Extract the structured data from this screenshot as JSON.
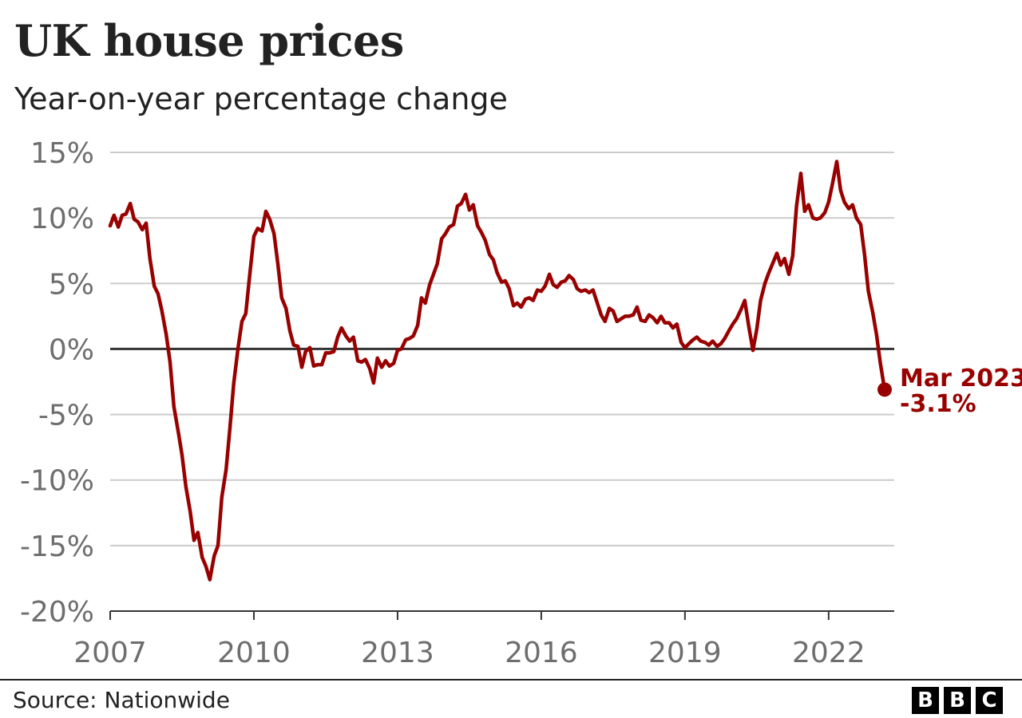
{
  "chart_data": {
    "type": "line",
    "title": "UK house prices",
    "subtitle": "Year-on-year percentage change",
    "xlabel": "",
    "ylabel": "",
    "x_range": [
      2007.0,
      2023.17
    ],
    "ylim": [
      -20,
      15
    ],
    "y_ticks": [
      15,
      10,
      5,
      0,
      -5,
      -10,
      -15,
      -20
    ],
    "y_tick_labels": [
      "15%",
      "10%",
      "5%",
      "0%",
      "-5%",
      "-10%",
      "-15%",
      "-20%"
    ],
    "x_ticks": [
      2007,
      2010,
      2013,
      2016,
      2019,
      2022
    ],
    "x_tick_labels": [
      "2007",
      "2010",
      "2013",
      "2016",
      "2019",
      "2022"
    ],
    "grid": true,
    "line_color": "#990000",
    "series": [
      {
        "name": "",
        "points": [
          [
            2007.0,
            9.4
          ],
          [
            2007.08,
            10.2
          ],
          [
            2007.17,
            9.3
          ],
          [
            2007.25,
            10.2
          ],
          [
            2007.33,
            10.3
          ],
          [
            2007.42,
            11.1
          ],
          [
            2007.5,
            9.9
          ],
          [
            2007.58,
            9.7
          ],
          [
            2007.67,
            9.1
          ],
          [
            2007.75,
            9.6
          ],
          [
            2007.83,
            6.9
          ],
          [
            2007.92,
            4.8
          ],
          [
            2008.0,
            4.2
          ],
          [
            2008.08,
            2.9
          ],
          [
            2008.17,
            1.1
          ],
          [
            2008.25,
            -1.0
          ],
          [
            2008.33,
            -4.4
          ],
          [
            2008.42,
            -6.3
          ],
          [
            2008.5,
            -8.1
          ],
          [
            2008.58,
            -10.5
          ],
          [
            2008.67,
            -12.4
          ],
          [
            2008.75,
            -14.6
          ],
          [
            2008.83,
            -14.0
          ],
          [
            2008.92,
            -15.9
          ],
          [
            2009.0,
            -16.6
          ],
          [
            2009.08,
            -17.6
          ],
          [
            2009.17,
            -15.8
          ],
          [
            2009.25,
            -15.0
          ],
          [
            2009.33,
            -11.3
          ],
          [
            2009.42,
            -9.2
          ],
          [
            2009.5,
            -6.0
          ],
          [
            2009.58,
            -2.6
          ],
          [
            2009.67,
            0.1
          ],
          [
            2009.75,
            2.1
          ],
          [
            2009.83,
            2.7
          ],
          [
            2009.92,
            5.9
          ],
          [
            2010.0,
            8.6
          ],
          [
            2010.08,
            9.2
          ],
          [
            2010.17,
            9.0
          ],
          [
            2010.25,
            10.5
          ],
          [
            2010.33,
            9.9
          ],
          [
            2010.42,
            8.8
          ],
          [
            2010.5,
            6.5
          ],
          [
            2010.58,
            3.9
          ],
          [
            2010.67,
            3.1
          ],
          [
            2010.75,
            1.4
          ],
          [
            2010.83,
            0.3
          ],
          [
            2010.92,
            0.2
          ],
          [
            2011.0,
            -1.4
          ],
          [
            2011.08,
            -0.2
          ],
          [
            2011.17,
            0.1
          ],
          [
            2011.25,
            -1.3
          ],
          [
            2011.33,
            -1.2
          ],
          [
            2011.42,
            -1.2
          ],
          [
            2011.5,
            -0.3
          ],
          [
            2011.58,
            -0.3
          ],
          [
            2011.67,
            -0.2
          ],
          [
            2011.75,
            0.9
          ],
          [
            2011.83,
            1.6
          ],
          [
            2011.92,
            1.0
          ],
          [
            2012.0,
            0.6
          ],
          [
            2012.08,
            0.9
          ],
          [
            2012.17,
            -0.9
          ],
          [
            2012.25,
            -1.0
          ],
          [
            2012.33,
            -0.8
          ],
          [
            2012.42,
            -1.5
          ],
          [
            2012.5,
            -2.6
          ],
          [
            2012.58,
            -0.7
          ],
          [
            2012.67,
            -1.4
          ],
          [
            2012.75,
            -0.9
          ],
          [
            2012.83,
            -1.3
          ],
          [
            2012.92,
            -1.1
          ],
          [
            2013.0,
            -0.1
          ],
          [
            2013.08,
            0.0
          ],
          [
            2013.17,
            0.7
          ],
          [
            2013.25,
            0.8
          ],
          [
            2013.33,
            1.0
          ],
          [
            2013.42,
            1.8
          ],
          [
            2013.5,
            3.9
          ],
          [
            2013.58,
            3.5
          ],
          [
            2013.67,
            4.9
          ],
          [
            2013.75,
            5.7
          ],
          [
            2013.83,
            6.5
          ],
          [
            2013.92,
            8.4
          ],
          [
            2014.0,
            8.8
          ],
          [
            2014.08,
            9.3
          ],
          [
            2014.17,
            9.5
          ],
          [
            2014.25,
            10.9
          ],
          [
            2014.33,
            11.1
          ],
          [
            2014.42,
            11.8
          ],
          [
            2014.5,
            10.6
          ],
          [
            2014.58,
            11.0
          ],
          [
            2014.67,
            9.4
          ],
          [
            2014.75,
            8.9
          ],
          [
            2014.83,
            8.3
          ],
          [
            2014.92,
            7.2
          ],
          [
            2015.0,
            6.8
          ],
          [
            2015.08,
            5.8
          ],
          [
            2015.17,
            5.1
          ],
          [
            2015.25,
            5.2
          ],
          [
            2015.33,
            4.6
          ],
          [
            2015.42,
            3.3
          ],
          [
            2015.5,
            3.5
          ],
          [
            2015.58,
            3.2
          ],
          [
            2015.67,
            3.8
          ],
          [
            2015.75,
            3.9
          ],
          [
            2015.83,
            3.7
          ],
          [
            2015.92,
            4.5
          ],
          [
            2016.0,
            4.4
          ],
          [
            2016.08,
            4.8
          ],
          [
            2016.17,
            5.7
          ],
          [
            2016.25,
            4.9
          ],
          [
            2016.33,
            4.7
          ],
          [
            2016.42,
            5.1
          ],
          [
            2016.5,
            5.2
          ],
          [
            2016.58,
            5.6
          ],
          [
            2016.67,
            5.3
          ],
          [
            2016.75,
            4.6
          ],
          [
            2016.83,
            4.4
          ],
          [
            2016.92,
            4.5
          ],
          [
            2017.0,
            4.3
          ],
          [
            2017.08,
            4.5
          ],
          [
            2017.17,
            3.5
          ],
          [
            2017.25,
            2.6
          ],
          [
            2017.33,
            2.1
          ],
          [
            2017.42,
            3.1
          ],
          [
            2017.5,
            2.9
          ],
          [
            2017.58,
            2.1
          ],
          [
            2017.67,
            2.3
          ],
          [
            2017.75,
            2.5
          ],
          [
            2017.83,
            2.5
          ],
          [
            2017.92,
            2.6
          ],
          [
            2018.0,
            3.2
          ],
          [
            2018.08,
            2.2
          ],
          [
            2018.17,
            2.1
          ],
          [
            2018.25,
            2.6
          ],
          [
            2018.33,
            2.4
          ],
          [
            2018.42,
            2.0
          ],
          [
            2018.5,
            2.5
          ],
          [
            2018.58,
            2.0
          ],
          [
            2018.67,
            2.0
          ],
          [
            2018.75,
            1.6
          ],
          [
            2018.83,
            1.9
          ],
          [
            2018.92,
            0.5
          ],
          [
            2019.0,
            0.1
          ],
          [
            2019.08,
            0.4
          ],
          [
            2019.17,
            0.7
          ],
          [
            2019.25,
            0.9
          ],
          [
            2019.33,
            0.6
          ],
          [
            2019.42,
            0.5
          ],
          [
            2019.5,
            0.3
          ],
          [
            2019.58,
            0.6
          ],
          [
            2019.67,
            0.2
          ],
          [
            2019.75,
            0.4
          ],
          [
            2019.83,
            0.8
          ],
          [
            2019.92,
            1.4
          ],
          [
            2020.0,
            1.9
          ],
          [
            2020.08,
            2.3
          ],
          [
            2020.17,
            3.0
          ],
          [
            2020.25,
            3.7
          ],
          [
            2020.33,
            1.8
          ],
          [
            2020.42,
            -0.1
          ],
          [
            2020.5,
            1.5
          ],
          [
            2020.58,
            3.7
          ],
          [
            2020.67,
            5.0
          ],
          [
            2020.75,
            5.8
          ],
          [
            2020.83,
            6.5
          ],
          [
            2020.92,
            7.3
          ],
          [
            2021.0,
            6.4
          ],
          [
            2021.08,
            6.9
          ],
          [
            2021.17,
            5.7
          ],
          [
            2021.25,
            7.1
          ],
          [
            2021.33,
            10.9
          ],
          [
            2021.42,
            13.4
          ],
          [
            2021.5,
            10.5
          ],
          [
            2021.58,
            11.0
          ],
          [
            2021.67,
            10.0
          ],
          [
            2021.75,
            9.9
          ],
          [
            2021.83,
            10.0
          ],
          [
            2021.92,
            10.4
          ],
          [
            2022.0,
            11.2
          ],
          [
            2022.08,
            12.6
          ],
          [
            2022.17,
            14.3
          ],
          [
            2022.25,
            12.1
          ],
          [
            2022.33,
            11.2
          ],
          [
            2022.42,
            10.7
          ],
          [
            2022.5,
            11.0
          ],
          [
            2022.58,
            10.0
          ],
          [
            2022.67,
            9.5
          ],
          [
            2022.75,
            7.2
          ],
          [
            2022.83,
            4.4
          ],
          [
            2022.92,
            2.8
          ],
          [
            2023.0,
            1.1
          ],
          [
            2023.08,
            -1.1
          ],
          [
            2023.17,
            -3.1
          ]
        ]
      }
    ],
    "annotation": {
      "x": 2023.17,
      "y": -3.1,
      "label_line1": "Mar 2023",
      "label_line2": "-3.1%"
    }
  },
  "footer": {
    "source": "Source: Nationwide",
    "logo_letters": [
      "B",
      "B",
      "C"
    ]
  }
}
